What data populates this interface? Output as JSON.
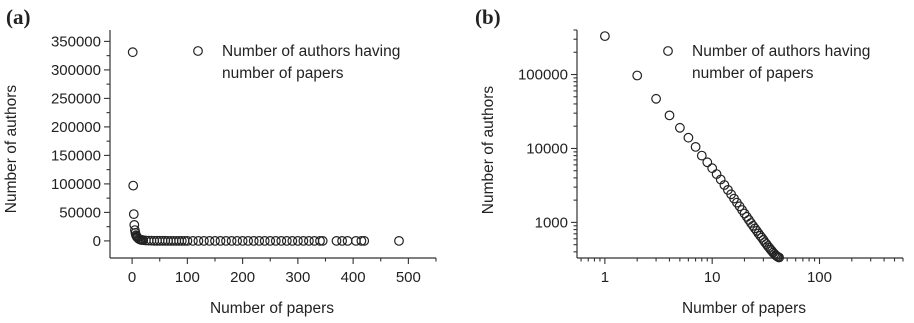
{
  "figure": {
    "panels": [
      {
        "label": "(a)"
      },
      {
        "label": "(b)"
      }
    ]
  },
  "chart_data": [
    {
      "type": "scatter",
      "panel": "(a)",
      "title": "",
      "xlabel": "Number of papers",
      "ylabel": "Number of authors",
      "xlim": [
        -40,
        550
      ],
      "ylim": [
        -30000,
        370000
      ],
      "xscale": "linear",
      "yscale": "linear",
      "xticks": [
        0,
        100,
        200,
        300,
        400,
        500
      ],
      "yticks": [
        0,
        50000,
        100000,
        150000,
        200000,
        250000,
        300000,
        350000
      ],
      "grid": false,
      "legend": {
        "position": "top-right",
        "entries": [
          "Number of authors having",
          "number of papers"
        ]
      },
      "series": [
        {
          "marker": "open-circle",
          "x": [
            1,
            2,
            3,
            4,
            5,
            6,
            7,
            8,
            9,
            10,
            12,
            14,
            16,
            18,
            20,
            25,
            30,
            35,
            40,
            45,
            50,
            55,
            60,
            65,
            70,
            75,
            80,
            85,
            90,
            95,
            100,
            110,
            120,
            130,
            140,
            150,
            160,
            170,
            180,
            190,
            200,
            210,
            220,
            230,
            240,
            250,
            260,
            270,
            280,
            290,
            300,
            310,
            320,
            330,
            340,
            345,
            370,
            380,
            390,
            405,
            415,
            420,
            483
          ],
          "y": [
            331000,
            97000,
            47000,
            28000,
            19000,
            14000,
            10000,
            8000,
            6500,
            5400,
            3700,
            2700,
            2000,
            1500,
            1200,
            700,
            450,
            320,
            230,
            180,
            140,
            110,
            90,
            75,
            62,
            52,
            45,
            39,
            34,
            29,
            25,
            20,
            16,
            13,
            10,
            8,
            7,
            6,
            5,
            4,
            4,
            3,
            3,
            2,
            2,
            2,
            2,
            1,
            1,
            1,
            1,
            1,
            1,
            1,
            1,
            1,
            1,
            1,
            1,
            1,
            1,
            1,
            1
          ]
        }
      ]
    },
    {
      "type": "scatter",
      "panel": "(b)",
      "title": "",
      "xlabel": "Number of papers",
      "ylabel": "Number of authors",
      "xlim": [
        0.55,
        600
      ],
      "ylim": [
        330,
        400000
      ],
      "xscale": "log",
      "yscale": "log",
      "xticks": [
        1,
        10,
        100
      ],
      "yticks": [
        1000,
        10000,
        100000
      ],
      "grid": false,
      "legend": {
        "position": "top-right",
        "entries": [
          "Number of authors having",
          "number of papers"
        ]
      },
      "series": [
        {
          "marker": "open-circle",
          "x": [
            1,
            2,
            3,
            4,
            5,
            6,
            7,
            8,
            9,
            10,
            11,
            12,
            13,
            14,
            15,
            16,
            17,
            18,
            19,
            20,
            21,
            22,
            23,
            24,
            25,
            26,
            27,
            28,
            29,
            30,
            31,
            32,
            33,
            34,
            35,
            36,
            37,
            38,
            39,
            40,
            41,
            42
          ],
          "y": [
            331000,
            97000,
            47000,
            28000,
            19000,
            14000,
            10500,
            8000,
            6500,
            5400,
            4500,
            3800,
            3200,
            2750,
            2400,
            2100,
            1850,
            1650,
            1470,
            1320,
            1190,
            1080,
            980,
            900,
            830,
            770,
            710,
            660,
            620,
            580,
            540,
            510,
            480,
            455,
            430,
            410,
            390,
            375,
            360,
            350,
            342,
            335
          ]
        }
      ]
    }
  ]
}
